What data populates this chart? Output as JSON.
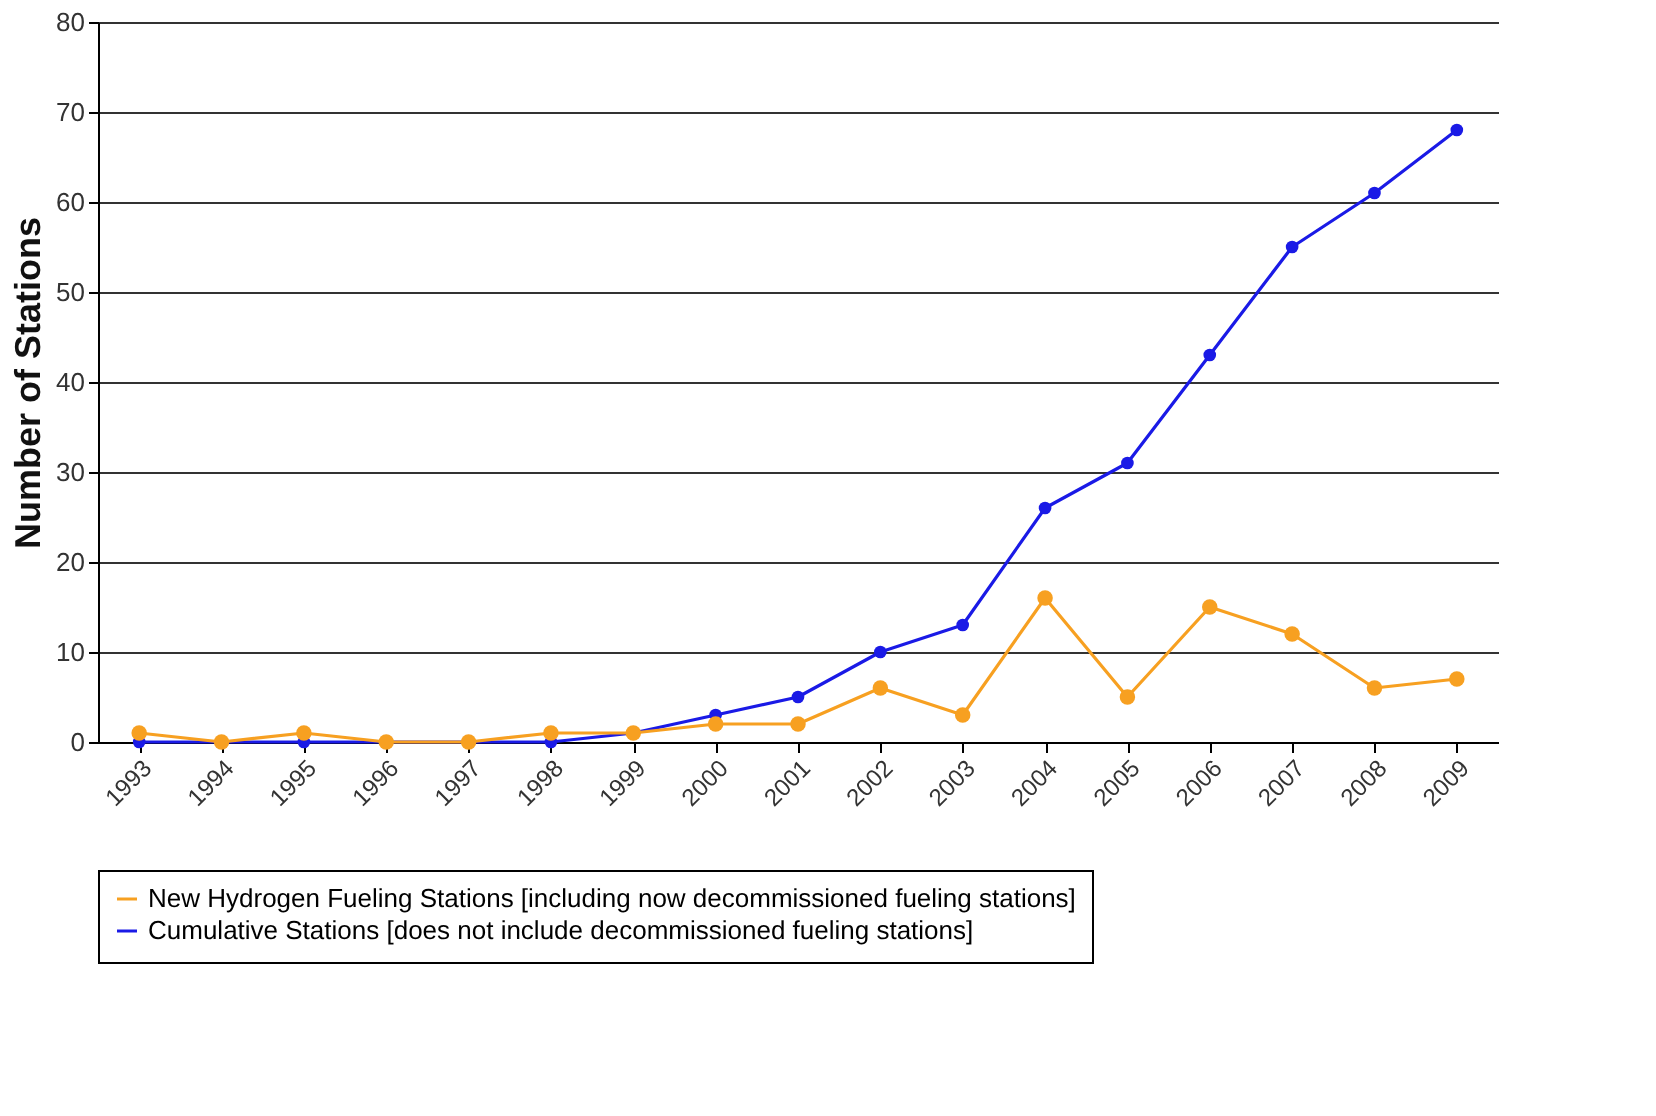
{
  "chart_data": {
    "type": "line",
    "ylabel": "Number of Stations",
    "categories": [
      "1993",
      "1994",
      "1995",
      "1996",
      "1997",
      "1998",
      "1999",
      "2000",
      "2001",
      "2002",
      "2003",
      "2004",
      "2005",
      "2006",
      "2007",
      "2008",
      "2009"
    ],
    "series": [
      {
        "name": "New Hydrogen Fueling Stations [including now decommissioned fueling stations]",
        "color": "#f7a021",
        "values": [
          1,
          0,
          1,
          0,
          0,
          1,
          1,
          2,
          2,
          6,
          3,
          16,
          5,
          15,
          12,
          6,
          7
        ]
      },
      {
        "name": "Cumulative Stations [does not include decommissioned fueling stations]",
        "color": "#1a1ae6",
        "values": [
          0,
          0,
          0,
          0,
          0,
          0,
          1,
          3,
          5,
          10,
          13,
          26,
          31,
          43,
          55,
          61,
          68
        ]
      }
    ],
    "ylim": [
      0,
      80
    ],
    "yticks": [
      0,
      10,
      20,
      30,
      40,
      50,
      60,
      70,
      80
    ],
    "grid": "y",
    "legend": "bottom",
    "marker": "circle",
    "line_style": "solid"
  }
}
